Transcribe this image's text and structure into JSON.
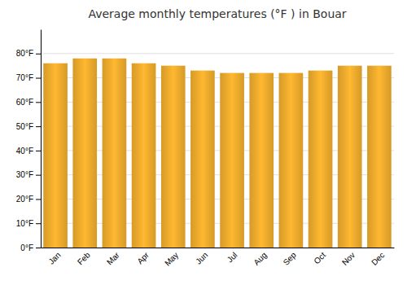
{
  "chart_data": {
    "type": "bar",
    "title": "Average monthly temperatures (°F ) in Bouar",
    "categories": [
      "Jan",
      "Feb",
      "Mar",
      "Apr",
      "May",
      "Jun",
      "Jul",
      "Aug",
      "Sep",
      "Oct",
      "Nov",
      "Dec"
    ],
    "values": [
      76,
      78,
      78,
      76,
      75,
      73,
      72,
      72,
      72,
      73,
      75,
      75
    ],
    "color": "#FFB830",
    "ylim": [
      0,
      90
    ],
    "yticks": [
      {
        "value": 0,
        "label": "0°F"
      },
      {
        "value": 10,
        "label": "10°F"
      },
      {
        "value": 20,
        "label": "20°F"
      },
      {
        "value": 30,
        "label": "30°F"
      },
      {
        "value": 40,
        "label": "40°F"
      },
      {
        "value": 50,
        "label": "50°F"
      },
      {
        "value": 60,
        "label": "60°F"
      },
      {
        "value": 70,
        "label": "70°F"
      },
      {
        "value": 80,
        "label": "80°F"
      }
    ],
    "grid": true
  }
}
